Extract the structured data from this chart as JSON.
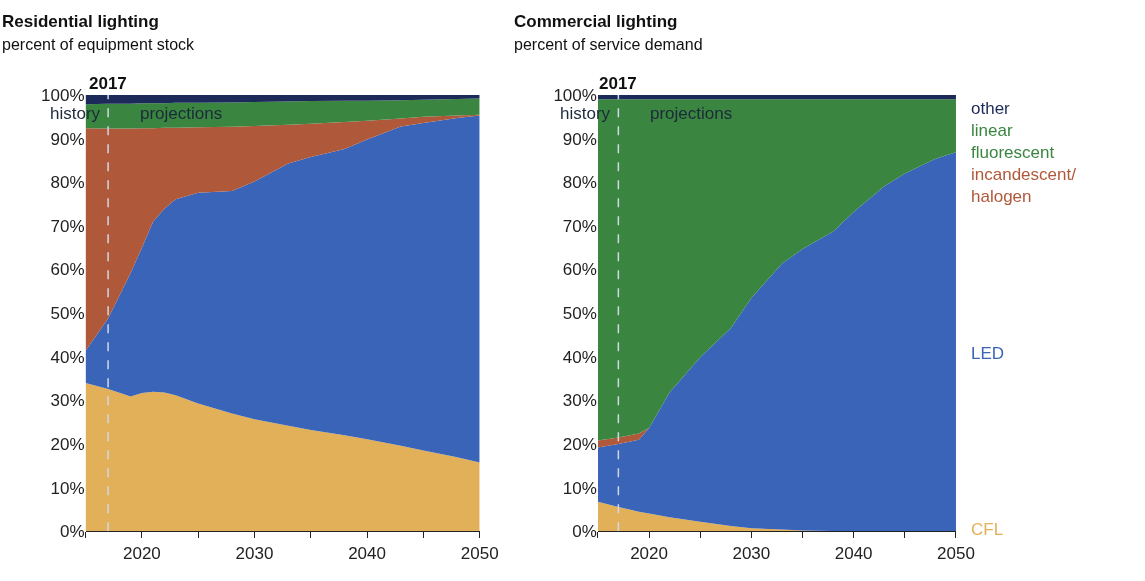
{
  "chart_data": [
    {
      "type": "area",
      "title": "Residential lighting",
      "subtitle": "percent of equipment stock",
      "stacked": true,
      "legend": false,
      "tick_labels": "xy",
      "x": [
        2015,
        2017,
        2019,
        2020,
        2021,
        2022,
        2023,
        2025,
        2028,
        2030,
        2033,
        2035,
        2038,
        2040,
        2043,
        2045,
        2048,
        2050
      ],
      "xlim": [
        2015,
        2050
      ],
      "xticks": [
        {
          "value": 2015,
          "label": null
        },
        2020,
        {
          "value": 2025,
          "label": null
        },
        2030,
        {
          "value": 2035,
          "label": null
        },
        2040,
        {
          "value": 2045,
          "label": null
        },
        2050
      ],
      "ylim": [
        0,
        100
      ],
      "yticks": [
        {
          "value": 0,
          "label": "0%"
        },
        {
          "value": 10,
          "label": "10%"
        },
        {
          "value": 20,
          "label": "20%"
        },
        {
          "value": 30,
          "label": "30%"
        },
        {
          "value": 40,
          "label": "40%"
        },
        {
          "value": 50,
          "label": "50%"
        },
        {
          "value": 60,
          "label": "60%"
        },
        {
          "value": 70,
          "label": "70%"
        },
        {
          "value": 80,
          "label": "80%"
        },
        {
          "value": 90,
          "label": "90%"
        },
        {
          "value": 100,
          "label": "100%"
        }
      ],
      "series": [
        {
          "color": "#e3b05a",
          "values": [
            34,
            32.6,
            30.9,
            31.7,
            32,
            31.8,
            31.2,
            29.3,
            27,
            25.7,
            24.2,
            23.2,
            22,
            21.1,
            19.6,
            18.5,
            17,
            15.8
          ]
        },
        {
          "color": "#3a64b8",
          "values": [
            7.4,
            16.2,
            28.3,
            33.3,
            39,
            42.1,
            44.9,
            48.3,
            51,
            54.5,
            60.1,
            62.6,
            65.6,
            68.7,
            73.2,
            75.1,
            77.7,
            79.5
          ]
        },
        {
          "color": "#b0593a",
          "values": [
            51,
            43.5,
            33.1,
            27.4,
            21.4,
            18.6,
            16.4,
            15,
            14.7,
            12.7,
            8.9,
            7.6,
            6.2,
            4.3,
            1.8,
            1.4,
            0.6,
            0.2
          ]
        },
        {
          "color": "#3a8540",
          "values": [
            5.5,
            5.7,
            5.7,
            5.7,
            5.7,
            5.6,
            5.7,
            5.6,
            5.6,
            5.5,
            5.3,
            5.2,
            4.9,
            4.6,
            4.2,
            3.9,
            3.8,
            3.7
          ]
        },
        {
          "color": "#1c2a5a",
          "values": [
            2.1,
            2,
            2,
            1.9,
            1.9,
            1.9,
            1.8,
            1.8,
            1.7,
            1.6,
            1.5,
            1.4,
            1.3,
            1.3,
            1.2,
            1.1,
            0.9,
            0.8
          ]
        }
      ],
      "ref_lines": [
        {
          "axis": "x",
          "value": 2017,
          "label": "2017",
          "color": "#d0d8e8",
          "line_style": "dashed"
        }
      ],
      "annotations": [
        "history",
        "projections"
      ]
    },
    {
      "type": "area",
      "title": "Commercial lighting",
      "subtitle": "percent of service demand",
      "stacked": true,
      "legend": false,
      "tick_labels": "xy",
      "x": [
        2015,
        2017,
        2019,
        2020,
        2022,
        2025,
        2028,
        2030,
        2033,
        2035,
        2038,
        2040,
        2043,
        2045,
        2048,
        2050
      ],
      "xlim": [
        2015,
        2050
      ],
      "xticks": [
        {
          "value": 2015,
          "label": null
        },
        2020,
        {
          "value": 2025,
          "label": null
        },
        2030,
        {
          "value": 2035,
          "label": null
        },
        2040,
        {
          "value": 2045,
          "label": null
        },
        2050
      ],
      "ylim": [
        0,
        100
      ],
      "yticks": [
        {
          "value": 0,
          "label": "0%"
        },
        {
          "value": 10,
          "label": "10%"
        },
        {
          "value": 20,
          "label": "20%"
        },
        {
          "value": 30,
          "label": "30%"
        },
        {
          "value": 40,
          "label": "40%"
        },
        {
          "value": 50,
          "label": "50%"
        },
        {
          "value": 60,
          "label": "60%"
        },
        {
          "value": 70,
          "label": "70%"
        },
        {
          "value": 80,
          "label": "80%"
        },
        {
          "value": 90,
          "label": "90%"
        },
        {
          "value": 100,
          "label": "100%"
        }
      ],
      "series": [
        {
          "name": "CFL",
          "color": "#e3b05a",
          "values": [
            6.8,
            5.6,
            4.5,
            4.1,
            3.2,
            2.2,
            1.2,
            0.7,
            0.4,
            0.2,
            0.1,
            0,
            0,
            0,
            0,
            0
          ]
        },
        {
          "name": "LED",
          "color": "#3a64b8",
          "values": [
            12.4,
            14.4,
            16.5,
            19.6,
            28.6,
            37.7,
            45.4,
            52.8,
            61,
            64.5,
            68.6,
            73.2,
            79.1,
            82,
            85.4,
            86.9
          ]
        },
        {
          "name": "incandescent/halogen",
          "color": "#b0593a",
          "values": [
            1.6,
            1.5,
            1.4,
            0,
            0,
            0,
            0,
            0,
            0,
            0,
            0,
            0,
            0,
            0,
            0,
            0
          ]
        },
        {
          "name": "linear fluorescent",
          "color": "#3a8540",
          "values": [
            78.2,
            77.5,
            76.6,
            75.3,
            67.2,
            59.1,
            52.4,
            45.5,
            37.6,
            34.3,
            30.3,
            25.8,
            19.9,
            17,
            13.6,
            12.1
          ]
        },
        {
          "name": "other",
          "color": "#1c2a5a",
          "values": [
            1,
            1,
            1,
            1,
            1,
            1,
            1,
            1,
            1,
            1,
            1,
            1,
            1,
            1,
            1,
            1
          ]
        }
      ],
      "ref_lines": [
        {
          "axis": "x",
          "value": 2017,
          "label": "2017",
          "color": "#d0d8e8",
          "line_style": "dashed"
        }
      ],
      "annotations": [
        "history",
        "projections"
      ]
    }
  ]
}
